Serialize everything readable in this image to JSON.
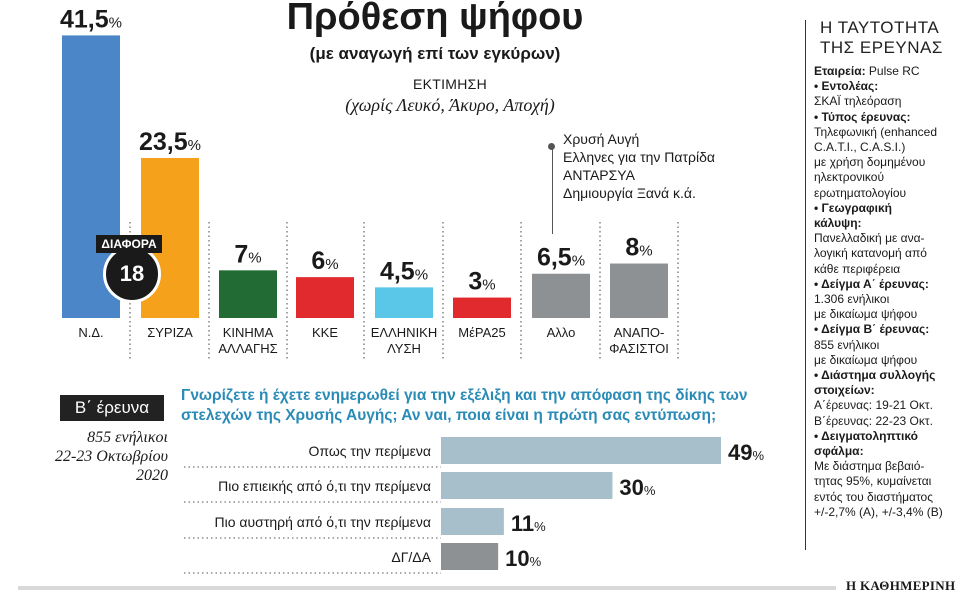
{
  "title": "Πρόθεση ψήφου",
  "subtitle": "(με αναγωγή επί των εγκύρων)",
  "estimate_label": "ΕΚΤΙΜΗΣΗ",
  "estimate_note": "(χωρίς Λευκό, Άκυρο, Αποχή)",
  "other_parties": [
    "Χρυσή Αυγή",
    "Ελληνες για την Πατρίδα",
    "ΑΝΤΑΡΣΥΑ",
    "Δημιουργία Ξανά κ.ά."
  ],
  "difference": {
    "label": "ΔΙΑΦΟΡΑ",
    "value": "18"
  },
  "chart_data": [
    {
      "type": "bar",
      "title": "Πρόθεση ψήφου",
      "categories": [
        "Ν.Δ.",
        "ΣΥΡΙΖΑ",
        "ΚΙΝΗΜΑ ΑΛΛΑΓΗΣ",
        "ΚΚΕ",
        "ΕΛΛΗΝΙΚΗ ΛΥΣΗ",
        "ΜέΡΑ25",
        "Αλλο",
        "ΑΝΑΠΟ- ΦΑΣΙΣΤΟΙ"
      ],
      "category_lines": [
        [
          "Ν.Δ."
        ],
        [
          "ΣΥΡΙΖΑ"
        ],
        [
          "ΚΙΝΗΜΑ",
          "ΑΛΛΑΓΗΣ"
        ],
        [
          "ΚΚΕ"
        ],
        [
          "ΕΛΛΗΝΙΚΗ",
          "ΛΥΣΗ"
        ],
        [
          "ΜέΡΑ25"
        ],
        [
          "Αλλο"
        ],
        [
          "ΑΝΑΠΟ-",
          "ΦΑΣΙΣΤΟΙ"
        ]
      ],
      "values": [
        41.5,
        23.5,
        7,
        6,
        4.5,
        3,
        6.5,
        8
      ],
      "value_labels": [
        "41,5",
        "23,5",
        "7",
        "6",
        "4,5",
        "3",
        "6,5",
        "8"
      ],
      "unit": "%",
      "colors": [
        "#4a86c8",
        "#f5a11c",
        "#226b35",
        "#e02a2e",
        "#5bc7e8",
        "#e02a2e",
        "#8e9194",
        "#8e9194"
      ],
      "ylim": [
        0,
        42
      ]
    },
    {
      "type": "bar",
      "orientation": "horizontal",
      "title": "Γνωρίζετε ή έχετε ενημερωθεί για την εξέλιξη και την απόφαση της δίκης των στελεχών της Χρυσής Αυγής; Αν ναι, ποια είναι η πρώτη σας εντύπωση;",
      "categories": [
        "Οπως την περίμενα",
        "Πιο επιεικής από ό,τι την περίμενα",
        "Πιο αυστηρή από ό,τι την περίμενα",
        "ΔΓ/ΔΑ"
      ],
      "values": [
        49,
        30,
        11,
        10
      ],
      "value_labels": [
        "49",
        "30",
        "11",
        "10"
      ],
      "unit": "%",
      "colors": [
        "#a6bfcb",
        "#a6bfcb",
        "#a6bfcb",
        "#8e9194"
      ],
      "xlim": [
        0,
        49
      ]
    }
  ],
  "survey": {
    "badge": "Β΄ έρευνα",
    "info": [
      "855 ενήλικοι",
      "22-23 Οκτωβρίου",
      "2020"
    ]
  },
  "sidebar": {
    "title": [
      "Η ΤΑΥΤΟΤΗΤΑ",
      "ΤΗΣ ΕΡΕΥΝΑΣ"
    ],
    "lines": [
      [
        {
          "t": "Εταιρεία: ",
          "b": true
        },
        {
          "t": "Pulse RC",
          "b": false
        }
      ],
      [
        {
          "t": "• Εντολέας:",
          "b": true
        }
      ],
      [
        {
          "t": "ΣΚΑΪ τηλεόραση",
          "b": false
        }
      ],
      [
        {
          "t": "• Τύπος έρευνας:",
          "b": true
        }
      ],
      [
        {
          "t": "Τηλεφωνική (enhanced",
          "b": false
        }
      ],
      [
        {
          "t": "C.A.T.I., C.A.S.I.)",
          "b": false
        }
      ],
      [
        {
          "t": "με χρήση δομημένου",
          "b": false
        }
      ],
      [
        {
          "t": "ηλεκτρονικού",
          "b": false
        }
      ],
      [
        {
          "t": "ερωτηματολογίου",
          "b": false
        }
      ],
      [
        {
          "t": "• Γεωγραφική",
          "b": true
        }
      ],
      [
        {
          "t": "κάλυψη:",
          "b": true
        }
      ],
      [
        {
          "t": "Πανελλαδική με ανα-",
          "b": false
        }
      ],
      [
        {
          "t": "λογική κατανομή από",
          "b": false
        }
      ],
      [
        {
          "t": "κάθε περιφέρεια",
          "b": false
        }
      ],
      [
        {
          "t": "• Δείγμα Α΄ έρευνας:",
          "b": true
        }
      ],
      [
        {
          "t": "1.306 ενήλικοι",
          "b": false
        }
      ],
      [
        {
          "t": "με δικαίωμα ψήφου",
          "b": false
        }
      ],
      [
        {
          "t": "• Δείγμα Β΄ έρευνας:",
          "b": true
        }
      ],
      [
        {
          "t": "855 ενήλικοι",
          "b": false
        }
      ],
      [
        {
          "t": "με δικαίωμα ψήφου",
          "b": false
        }
      ],
      [
        {
          "t": "• Διάστημα συλλογής",
          "b": true
        }
      ],
      [
        {
          "t": "στοιχείων:",
          "b": true
        }
      ],
      [
        {
          "t": "Α΄έρευνας: 19-21 Οκτ.",
          "b": false
        }
      ],
      [
        {
          "t": "Β΄έρευνας: 22-23 Οκτ.",
          "b": false
        }
      ],
      [
        {
          "t": "• Δειγματοληπτικό",
          "b": true
        }
      ],
      [
        {
          "t": "σφάλμα:",
          "b": true
        }
      ],
      [
        {
          "t": "Με διάστημα βεβαιό-",
          "b": false
        }
      ],
      [
        {
          "t": "τητας 95%, κυμαίνεται",
          "b": false
        }
      ],
      [
        {
          "t": "εντός του διαστήματος",
          "b": false
        }
      ],
      [
        {
          "t": "+/-2,7% (Α), +/-3,4% (Β)",
          "b": false
        }
      ]
    ]
  },
  "brand": "Η ΚΑΘΗΜΕΡΙΝΗ"
}
